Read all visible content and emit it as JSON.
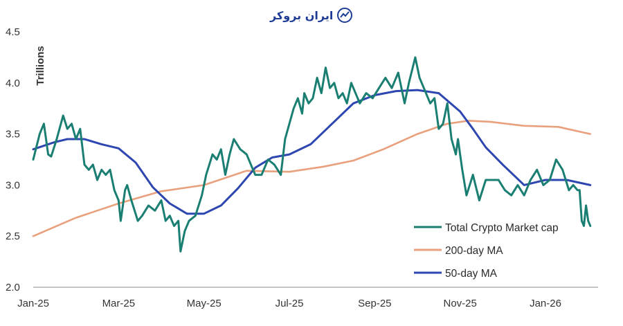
{
  "brand": {
    "logo_text": "ایران بروکر",
    "logo_icon": "trend-line-icon",
    "color": "#1e3c96"
  },
  "chart_data": {
    "type": "line",
    "title": "",
    "xlabel": "",
    "ylabel": "Trillions",
    "ylim": [
      2.0,
      4.5
    ],
    "yticks": [
      "2.0",
      "2.5",
      "3.0",
      "3.5",
      "4.0",
      "4.5"
    ],
    "xlim": [
      0,
      13.2
    ],
    "xticks": [
      {
        "label": "Jan-25",
        "month": 0
      },
      {
        "label": "Mar-25",
        "month": 2
      },
      {
        "label": "May-25",
        "month": 4
      },
      {
        "label": "Jul-25",
        "month": 6
      },
      {
        "label": "Sep-25",
        "month": 8
      },
      {
        "label": "Nov-25",
        "month": 10
      },
      {
        "label": "Jan-26",
        "month": 12
      }
    ],
    "grid": false,
    "legend_position": "bottom-right",
    "series": [
      {
        "name": "Total Crypto Market cap",
        "color": "#1a7f72",
        "x": [
          0.0,
          0.15,
          0.25,
          0.35,
          0.42,
          0.55,
          0.7,
          0.8,
          0.9,
          1.0,
          1.1,
          1.2,
          1.3,
          1.4,
          1.5,
          1.6,
          1.7,
          1.8,
          1.9,
          2.0,
          2.05,
          2.15,
          2.2,
          2.3,
          2.45,
          2.55,
          2.7,
          2.85,
          3.0,
          3.1,
          3.2,
          3.3,
          3.4,
          3.45,
          3.55,
          3.65,
          3.8,
          3.95,
          4.05,
          4.2,
          4.3,
          4.4,
          4.5,
          4.6,
          4.7,
          4.85,
          5.0,
          5.1,
          5.2,
          5.35,
          5.5,
          5.65,
          5.8,
          5.9,
          6.0,
          6.1,
          6.2,
          6.3,
          6.35,
          6.45,
          6.55,
          6.65,
          6.75,
          6.85,
          6.95,
          7.05,
          7.15,
          7.25,
          7.35,
          7.45,
          7.55,
          7.65,
          7.8,
          7.95,
          8.1,
          8.25,
          8.4,
          8.55,
          8.7,
          8.8,
          8.95,
          9.05,
          9.15,
          9.3,
          9.4,
          9.5,
          9.6,
          9.7,
          9.8,
          9.9,
          9.95,
          10.05,
          10.15,
          10.3,
          10.45,
          10.6,
          10.75,
          10.9,
          11.05,
          11.2,
          11.35,
          11.5,
          11.65,
          11.8,
          11.95,
          12.1,
          12.25,
          12.4,
          12.55,
          12.65,
          12.75,
          12.8,
          12.85,
          12.9,
          12.95,
          13.0,
          13.05
        ],
        "values": [
          3.25,
          3.5,
          3.6,
          3.3,
          3.28,
          3.45,
          3.68,
          3.55,
          3.6,
          3.45,
          3.55,
          3.2,
          3.15,
          3.2,
          3.05,
          3.15,
          3.1,
          3.15,
          2.95,
          2.85,
          2.65,
          2.95,
          3.0,
          2.85,
          2.65,
          2.7,
          2.8,
          2.75,
          2.85,
          2.65,
          2.7,
          2.6,
          2.65,
          2.35,
          2.55,
          2.65,
          2.7,
          2.9,
          3.1,
          3.3,
          3.25,
          3.35,
          3.1,
          3.3,
          3.45,
          3.35,
          3.3,
          3.2,
          3.1,
          3.1,
          3.25,
          3.2,
          3.1,
          3.45,
          3.6,
          3.75,
          3.85,
          3.7,
          3.9,
          3.8,
          3.85,
          4.05,
          3.9,
          4.15,
          3.95,
          4.0,
          3.85,
          3.9,
          3.8,
          4.0,
          3.9,
          3.8,
          3.9,
          3.85,
          3.95,
          4.05,
          3.95,
          4.1,
          3.8,
          4.0,
          4.25,
          4.05,
          3.95,
          3.8,
          3.85,
          3.55,
          3.6,
          3.8,
          3.45,
          3.3,
          3.45,
          3.15,
          2.9,
          3.1,
          2.85,
          3.05,
          3.05,
          3.05,
          2.95,
          2.9,
          3.0,
          2.9,
          3.05,
          3.15,
          3.0,
          3.05,
          3.25,
          3.15,
          2.95,
          3.0,
          2.95,
          2.95,
          2.65,
          2.6,
          2.8,
          2.65,
          2.6
        ]
      },
      {
        "name": "200-day MA",
        "color": "#e9a07c",
        "x": [
          0,
          1,
          2,
          3,
          4,
          5,
          6,
          6.8,
          7.5,
          8.2,
          9,
          9.7,
          10.2,
          10.7,
          11.5,
          12.3,
          13.05
        ],
        "values": [
          2.5,
          2.68,
          2.82,
          2.94,
          3.0,
          3.14,
          3.13,
          3.18,
          3.24,
          3.35,
          3.5,
          3.6,
          3.63,
          3.62,
          3.58,
          3.57,
          3.5
        ]
      },
      {
        "name": "50-day MA",
        "color": "#2e47b0",
        "x": [
          0,
          0.5,
          0.8,
          1.2,
          1.6,
          2.0,
          2.4,
          2.8,
          3.2,
          3.6,
          4.0,
          4.4,
          4.8,
          5.2,
          5.6,
          6.0,
          6.5,
          7.0,
          7.5,
          8.0,
          8.5,
          9.0,
          9.5,
          10.0,
          10.3,
          10.6,
          11.0,
          11.5,
          12.0,
          12.5,
          13.05
        ],
        "values": [
          3.35,
          3.42,
          3.45,
          3.45,
          3.4,
          3.36,
          3.22,
          2.98,
          2.82,
          2.72,
          2.72,
          2.8,
          2.97,
          3.17,
          3.27,
          3.3,
          3.4,
          3.6,
          3.8,
          3.88,
          3.92,
          3.93,
          3.9,
          3.72,
          3.55,
          3.37,
          3.2,
          3.0,
          3.05,
          3.05,
          3.0
        ]
      }
    ]
  }
}
